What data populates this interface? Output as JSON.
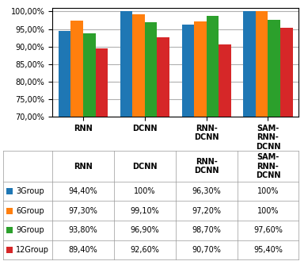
{
  "chart_data": {
    "type": "bar",
    "categories": [
      "RNN",
      "DCNN",
      "RNN-\nDCNN",
      "SAM-\nRNN-\nDCNN"
    ],
    "series": [
      {
        "name": "3Group",
        "values": [
          94.4,
          100.0,
          96.3,
          100.0
        ],
        "value_labels": [
          "94,40%",
          "100%",
          "96,30%",
          "100%"
        ]
      },
      {
        "name": "6Group",
        "values": [
          97.3,
          99.1,
          97.2,
          100.0
        ],
        "value_labels": [
          "97,30%",
          "99,10%",
          "97,20%",
          "100%"
        ]
      },
      {
        "name": "9Group",
        "values": [
          93.8,
          96.9,
          98.7,
          97.6
        ],
        "value_labels": [
          "93,80%",
          "96,90%",
          "98,70%",
          "97,60%"
        ]
      },
      {
        "name": "12Group",
        "values": [
          89.4,
          92.6,
          90.7,
          95.4
        ],
        "value_labels": [
          "89,40%",
          "92,60%",
          "90,70%",
          "95,40%"
        ]
      }
    ],
    "ylim": [
      70,
      101
    ],
    "yticks": [
      {
        "value": 70,
        "label": "70,00%"
      },
      {
        "value": 75,
        "label": "75,00%"
      },
      {
        "value": 80,
        "label": "80,00%"
      },
      {
        "value": 85,
        "label": "85,00%"
      },
      {
        "value": 90,
        "label": "90,00%"
      },
      {
        "value": 95,
        "label": "95,00%"
      },
      {
        "value": 100,
        "label": "100,00%"
      }
    ],
    "grid": true
  }
}
